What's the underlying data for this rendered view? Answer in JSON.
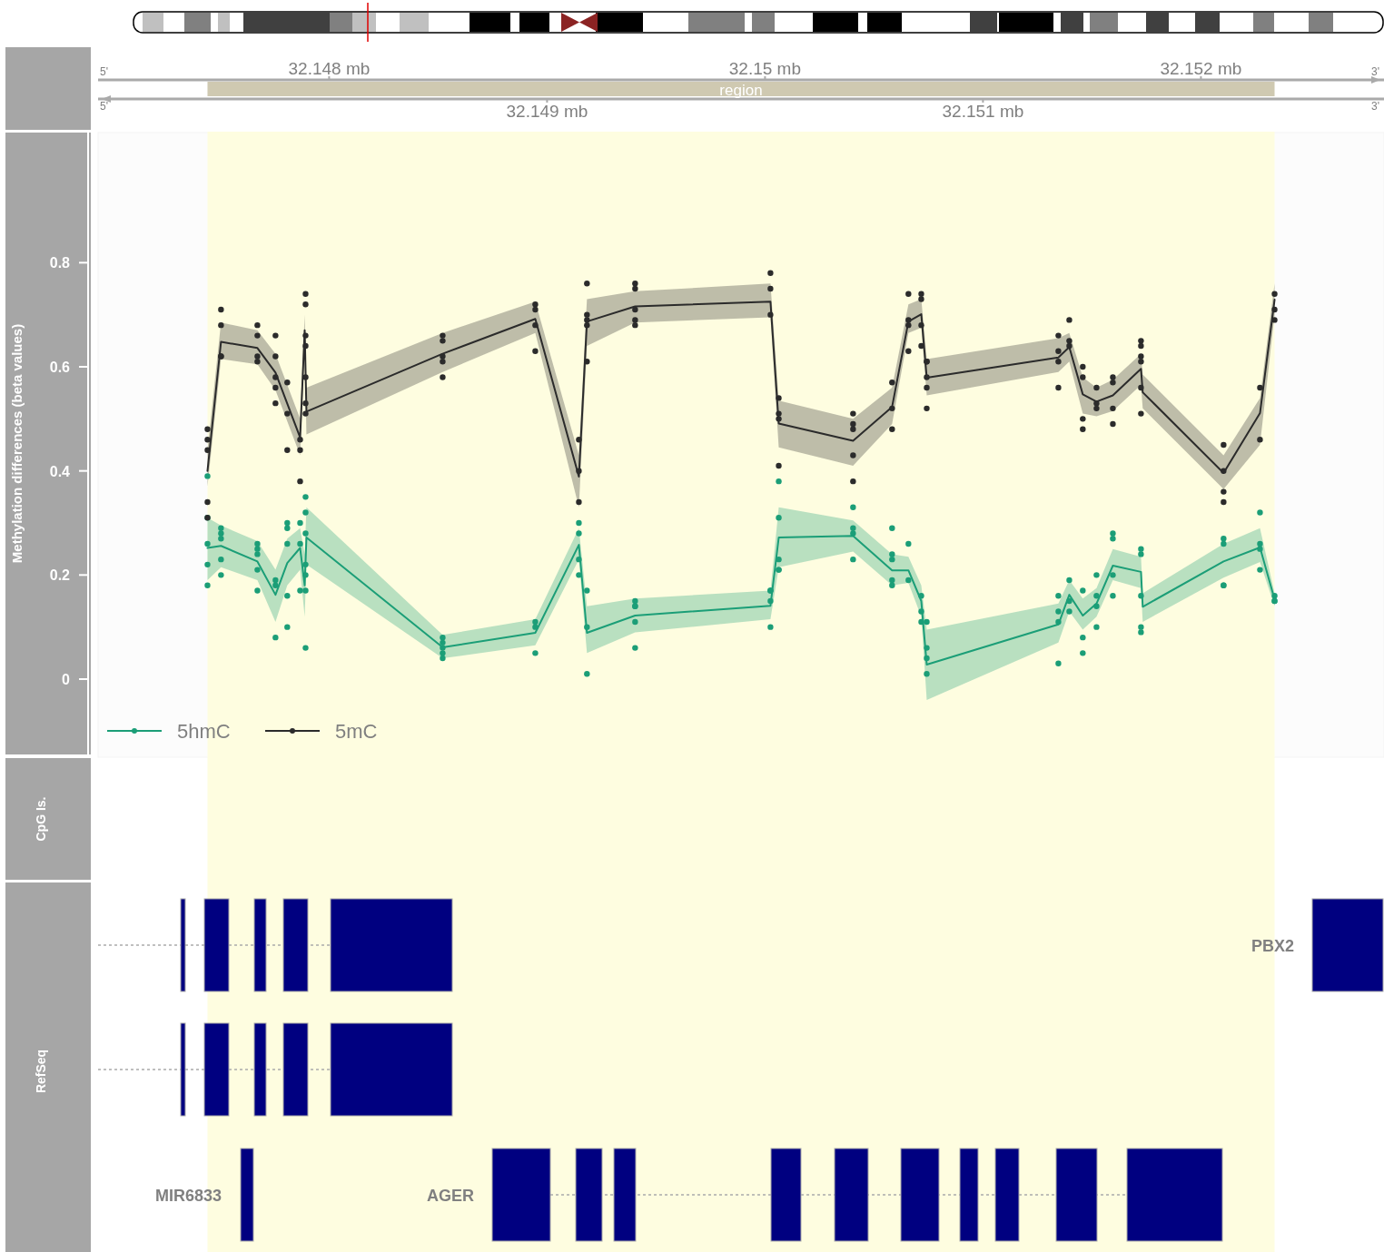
{
  "chart_data": {
    "type": "line",
    "ylabel": "Methylation differences (beta values)",
    "xlim": [
      32.14694,
      32.15284
    ],
    "ylim": [
      -0.15,
      1.05
    ],
    "xticks": [
      {
        "value": 32.149,
        "label": "32.149 mb"
      },
      {
        "value": 32.151,
        "label": "32.151 mb"
      }
    ],
    "x2lim": [
      32.14694,
      32.15284
    ],
    "x2ticks": [
      {
        "value": 32.148,
        "label": "32.148 mb"
      },
      {
        "value": 32.15,
        "label": "32.15 mb"
      },
      {
        "value": 32.152,
        "label": "32.152 mb"
      }
    ],
    "yticks": [
      0,
      0.2,
      0.4,
      0.6,
      0.8
    ],
    "grid": false,
    "legend": "bottom left",
    "line_style": "solid",
    "bands": [
      {
        "axis": "x",
        "from": 32.147442,
        "to": 32.152338,
        "label": "region",
        "color": "#fefde0"
      }
    ],
    "annotations": [
      "5'",
      "3'",
      "5'",
      "3'",
      "CpG Is.",
      "RefSeq",
      "MIR6833",
      "AGER",
      "PBX2"
    ],
    "series": [
      {
        "name": "5hmC",
        "color": "#1b9e77",
        "x": [
          32.147442,
          32.147504,
          32.147671,
          32.147754,
          32.147808,
          32.147867,
          32.147888,
          32.147896,
          32.148521,
          32.148946,
          32.149146,
          32.149183,
          32.149404,
          32.150025,
          32.150063,
          32.150404,
          32.150583,
          32.150658,
          32.150717,
          32.150742,
          32.151346,
          32.151396,
          32.151458,
          32.151521,
          32.151596,
          32.151725,
          32.151733,
          32.152104,
          32.152271,
          32.152338
        ],
        "values": [
          0.252,
          0.256,
          0.226,
          0.162,
          0.223,
          0.252,
          0.18,
          0.272,
          0.061,
          0.089,
          0.258,
          0.089,
          0.122,
          0.141,
          0.272,
          0.275,
          0.209,
          0.209,
          0.15,
          0.028,
          0.105,
          0.162,
          0.122,
          0.145,
          0.218,
          0.206,
          0.139,
          0.226,
          0.253,
          0.153
        ],
        "lower": [
          0.19,
          0.215,
          0.19,
          0.11,
          0.18,
          0.21,
          0.12,
          0.22,
          0.04,
          0.065,
          0.23,
          0.05,
          0.09,
          0.115,
          0.215,
          0.245,
          0.18,
          0.185,
          0.12,
          -0.04,
          0.07,
          0.13,
          0.095,
          0.12,
          0.19,
          0.175,
          0.11,
          0.195,
          0.225,
          0.14
        ],
        "upper": [
          0.31,
          0.295,
          0.265,
          0.21,
          0.27,
          0.29,
          0.24,
          0.33,
          0.085,
          0.115,
          0.29,
          0.14,
          0.155,
          0.17,
          0.33,
          0.305,
          0.24,
          0.235,
          0.18,
          0.095,
          0.145,
          0.19,
          0.155,
          0.175,
          0.25,
          0.235,
          0.165,
          0.26,
          0.29,
          0.165
        ]
      },
      {
        "name": "5mC",
        "color": "#2b2b2b",
        "x": [
          32.147442,
          32.147504,
          32.147671,
          32.147754,
          32.147867,
          32.147888,
          32.147896,
          32.148521,
          32.148946,
          32.149146,
          32.149183,
          32.149404,
          32.150025,
          32.150063,
          32.150404,
          32.150583,
          32.150658,
          32.150717,
          32.150742,
          32.151346,
          32.151396,
          32.151458,
          32.151521,
          32.151596,
          32.151725,
          32.151733,
          32.152104,
          32.152271,
          32.152338
        ],
        "values": [
          0.4,
          0.648,
          0.636,
          0.589,
          0.464,
          0.67,
          0.514,
          0.625,
          0.692,
          0.389,
          0.687,
          0.716,
          0.725,
          0.491,
          0.458,
          0.523,
          0.687,
          0.701,
          0.579,
          0.618,
          0.638,
          0.547,
          0.533,
          0.545,
          0.596,
          0.551,
          0.396,
          0.511,
          0.729
        ],
        "lower": [
          0.37,
          0.615,
          0.605,
          0.555,
          0.43,
          0.64,
          0.47,
          0.59,
          0.665,
          0.33,
          0.64,
          0.685,
          0.695,
          0.445,
          0.41,
          0.49,
          0.665,
          0.675,
          0.545,
          0.59,
          0.61,
          0.51,
          0.505,
          0.515,
          0.565,
          0.52,
          0.365,
          0.45,
          0.7
        ],
        "upper": [
          0.44,
          0.685,
          0.67,
          0.625,
          0.5,
          0.7,
          0.56,
          0.665,
          0.725,
          0.43,
          0.73,
          0.745,
          0.76,
          0.535,
          0.5,
          0.56,
          0.72,
          0.73,
          0.615,
          0.655,
          0.665,
          0.58,
          0.56,
          0.575,
          0.625,
          0.585,
          0.43,
          0.54,
          0.76
        ]
      },
      {
        "type": "scatter",
        "color": "#1b9e77",
        "marker": "circle",
        "x": [
          32.147442,
          32.147442,
          32.147442,
          32.147442,
          32.147442,
          32.147504,
          32.147504,
          32.147504,
          32.147504,
          32.147504,
          32.147671,
          32.147671,
          32.147671,
          32.147671,
          32.147671,
          32.147754,
          32.147754,
          32.147754,
          32.147808,
          32.147808,
          32.147808,
          32.147808,
          32.147808,
          32.147867,
          32.147867,
          32.147867,
          32.147892,
          32.147892,
          32.147892,
          32.147892,
          32.147892,
          32.147892,
          32.147892,
          32.148521,
          32.148521,
          32.148521,
          32.148521,
          32.148521,
          32.148946,
          32.148946,
          32.148946,
          32.149146,
          32.149146,
          32.149146,
          32.149146,
          32.149183,
          32.149183,
          32.149183,
          32.149404,
          32.149404,
          32.149404,
          32.149404,
          32.149404,
          32.150025,
          32.150025,
          32.150025,
          32.150025,
          32.150063,
          32.150063,
          32.150063,
          32.150063,
          32.150063,
          32.150404,
          32.150404,
          32.150404,
          32.150404,
          32.150583,
          32.150583,
          32.150583,
          32.150583,
          32.150583,
          32.150658,
          32.150658,
          32.150717,
          32.150717,
          32.150717,
          32.150742,
          32.150742,
          32.150742,
          32.150742,
          32.151346,
          32.151346,
          32.151346,
          32.151346,
          32.151396,
          32.151396,
          32.151396,
          32.151458,
          32.151458,
          32.151458,
          32.151521,
          32.151521,
          32.151521,
          32.151521,
          32.151596,
          32.151596,
          32.151596,
          32.151596,
          32.151725,
          32.151725,
          32.151725,
          32.151725,
          32.151725,
          32.152104,
          32.152104,
          32.152104,
          32.152104,
          32.152271,
          32.152271,
          32.152271,
          32.152271,
          32.152338,
          32.152338,
          32.152338
        ],
        "values": [
          0.39,
          0.31,
          0.26,
          0.22,
          0.18,
          0.29,
          0.28,
          0.27,
          0.23,
          0.2,
          0.26,
          0.25,
          0.24,
          0.21,
          0.17,
          0.19,
          0.18,
          0.08,
          0.3,
          0.29,
          0.26,
          0.16,
          0.1,
          0.3,
          0.26,
          0.17,
          0.35,
          0.32,
          0.28,
          0.22,
          0.2,
          0.17,
          0.06,
          0.08,
          0.07,
          0.06,
          0.05,
          0.04,
          0.11,
          0.1,
          0.05,
          0.3,
          0.28,
          0.23,
          0.2,
          0.17,
          0.1,
          0.01,
          0.15,
          0.14,
          0.14,
          0.11,
          0.06,
          0.17,
          0.17,
          0.15,
          0.1,
          0.38,
          0.31,
          0.23,
          0.21,
          0.21,
          0.33,
          0.29,
          0.28,
          0.23,
          0.29,
          0.24,
          0.23,
          0.19,
          0.18,
          0.26,
          0.19,
          0.16,
          0.13,
          0.11,
          0.11,
          0.06,
          0.04,
          0.01,
          0.16,
          0.13,
          0.11,
          0.03,
          0.19,
          0.15,
          0.13,
          0.17,
          0.08,
          0.05,
          0.2,
          0.16,
          0.14,
          0.1,
          0.28,
          0.27,
          0.2,
          0.16,
          0.25,
          0.24,
          0.16,
          0.1,
          0.09,
          0.27,
          0.26,
          0.18,
          0.18,
          0.32,
          0.26,
          0.25,
          0.21,
          0.16,
          0.15,
          0.15
        ]
      },
      {
        "type": "scatter",
        "color": "#2b2b2b",
        "marker": "circle",
        "x": [
          32.147442,
          32.147442,
          32.147442,
          32.147442,
          32.147442,
          32.147504,
          32.147504,
          32.147504,
          32.147504,
          32.147671,
          32.147671,
          32.147671,
          32.147671,
          32.147754,
          32.147754,
          32.147754,
          32.147754,
          32.147754,
          32.147808,
          32.147808,
          32.147808,
          32.147867,
          32.147867,
          32.147867,
          32.147892,
          32.147892,
          32.147892,
          32.147892,
          32.147892,
          32.147892,
          32.147892,
          32.148521,
          32.148521,
          32.148521,
          32.148521,
          32.148521,
          32.148946,
          32.148946,
          32.148946,
          32.148946,
          32.149146,
          32.149146,
          32.149146,
          32.149183,
          32.149183,
          32.149183,
          32.149183,
          32.149183,
          32.149404,
          32.149404,
          32.149404,
          32.149404,
          32.149404,
          32.150025,
          32.150025,
          32.150025,
          32.150063,
          32.150063,
          32.150063,
          32.150063,
          32.150404,
          32.150404,
          32.150404,
          32.150404,
          32.150404,
          32.150583,
          32.150583,
          32.150583,
          32.150658,
          32.150658,
          32.150658,
          32.150658,
          32.150717,
          32.150717,
          32.150717,
          32.150717,
          32.150742,
          32.150742,
          32.150742,
          32.150742,
          32.150742,
          32.151346,
          32.151346,
          32.151346,
          32.151346,
          32.151396,
          32.151396,
          32.151396,
          32.151458,
          32.151458,
          32.151458,
          32.151458,
          32.151521,
          32.151521,
          32.151521,
          32.151596,
          32.151596,
          32.151596,
          32.151596,
          32.151725,
          32.151725,
          32.151725,
          32.151725,
          32.151725,
          32.151725,
          32.152104,
          32.152104,
          32.152104,
          32.152104,
          32.152271,
          32.152271,
          32.152338,
          32.152338,
          32.152338
        ],
        "values": [
          0.48,
          0.46,
          0.44,
          0.34,
          0.31,
          0.71,
          0.68,
          0.62,
          0.62,
          0.68,
          0.66,
          0.62,
          0.61,
          0.66,
          0.62,
          0.58,
          0.56,
          0.53,
          0.57,
          0.51,
          0.44,
          0.46,
          0.44,
          0.38,
          0.74,
          0.72,
          0.66,
          0.64,
          0.58,
          0.53,
          0.51,
          0.66,
          0.65,
          0.62,
          0.61,
          0.58,
          0.72,
          0.71,
          0.68,
          0.63,
          0.46,
          0.4,
          0.34,
          0.76,
          0.7,
          0.69,
          0.68,
          0.61,
          0.76,
          0.75,
          0.71,
          0.69,
          0.68,
          0.78,
          0.75,
          0.7,
          0.54,
          0.51,
          0.5,
          0.41,
          0.51,
          0.49,
          0.48,
          0.43,
          0.38,
          0.57,
          0.52,
          0.48,
          0.74,
          0.69,
          0.68,
          0.63,
          0.74,
          0.73,
          0.68,
          0.64,
          0.61,
          0.61,
          0.58,
          0.56,
          0.52,
          0.66,
          0.63,
          0.61,
          0.56,
          0.69,
          0.65,
          0.64,
          0.6,
          0.58,
          0.5,
          0.48,
          0.56,
          0.53,
          0.52,
          0.58,
          0.57,
          0.52,
          0.49,
          0.65,
          0.64,
          0.62,
          0.61,
          0.56,
          0.51,
          0.45,
          0.4,
          0.36,
          0.34,
          0.56,
          0.46,
          0.74,
          0.71,
          0.69
        ]
      }
    ]
  }
}
